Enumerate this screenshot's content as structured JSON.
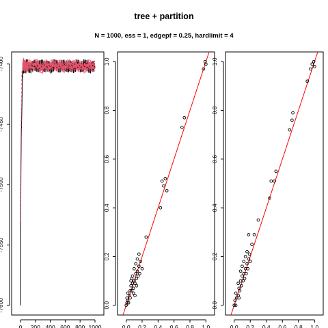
{
  "title": "tree + partition",
  "subtitle": "N = 1000, ess = 1, edgepf = 0.25, hardlimit = 4",
  "colors": {
    "trace_1": "#000000",
    "trace_2": "#DF536B",
    "points": "#000000",
    "reference_line": "#FF0000"
  },
  "chart_data": [
    {
      "type": "line",
      "title": "",
      "xlabel": "",
      "ylabel": "",
      "xlim": [
        0,
        1000
      ],
      "ylim": [
        -7600,
        -7390
      ],
      "xticks": [
        0,
        200,
        400,
        600,
        800,
        1000
      ],
      "yticks": [
        -7600,
        -7550,
        -7500,
        -7450,
        -7400
      ],
      "series": [
        {
          "color": "#000000",
          "x": [
            0,
            3,
            6,
            10,
            14,
            18,
            22,
            26,
            30,
            35,
            40,
            50,
            60,
            80,
            100,
            150,
            200,
            250,
            300,
            350,
            400,
            450,
            500,
            550,
            600,
            650,
            700,
            750,
            800,
            850,
            900,
            950,
            1000
          ],
          "y": [
            -7600,
            -7540,
            -7490,
            -7460,
            -7450,
            -7440,
            -7425,
            -7415,
            -7408,
            -7404,
            -7403,
            -7402,
            -7403,
            -7401,
            -7402,
            -7403,
            -7401,
            -7402,
            -7401,
            -7402,
            -7403,
            -7401,
            -7402,
            -7402,
            -7401,
            -7402,
            -7403,
            -7401,
            -7402,
            -7401,
            -7402,
            -7403,
            -7402
          ]
        },
        {
          "color": "#DF536B",
          "x": [
            0,
            3,
            6,
            10,
            14,
            18,
            22,
            26,
            30,
            35,
            40,
            50,
            60,
            80,
            100,
            150,
            200,
            250,
            300,
            350,
            400,
            450,
            500,
            550,
            600,
            650,
            700,
            750,
            800,
            850,
            900,
            950,
            1000
          ],
          "y": [
            -7530,
            -7480,
            -7460,
            -7445,
            -7430,
            -7410,
            -7405,
            -7404,
            -7402,
            -7401,
            -7400,
            -7402,
            -7401,
            -7403,
            -7401,
            -7402,
            -7400,
            -7402,
            -7403,
            -7401,
            -7402,
            -7400,
            -7402,
            -7401,
            -7403,
            -7400,
            -7402,
            -7401,
            -7402,
            -7403,
            -7401,
            -7402,
            -7401
          ]
        }
      ]
    },
    {
      "type": "scatter",
      "title": "",
      "xlabel": "",
      "ylabel": "",
      "xlim": [
        0,
        1
      ],
      "ylim": [
        0,
        1
      ],
      "xticks": [
        0.0,
        0.2,
        0.4,
        0.6,
        0.8,
        1.0
      ],
      "yticks": [
        0.0,
        0.2,
        0.4,
        0.6,
        0.8,
        1.0
      ],
      "reference_line": {
        "slope": 1,
        "intercept": 0
      },
      "points": [
        [
          0.0,
          0.0
        ],
        [
          0.01,
          0.01
        ],
        [
          0.02,
          0.02
        ],
        [
          0.01,
          0.03
        ],
        [
          0.03,
          0.01
        ],
        [
          0.02,
          0.05
        ],
        [
          0.04,
          0.04
        ],
        [
          0.05,
          0.06
        ],
        [
          0.05,
          0.03
        ],
        [
          0.06,
          0.08
        ],
        [
          0.07,
          0.06
        ],
        [
          0.08,
          0.09
        ],
        [
          0.06,
          0.1
        ],
        [
          0.09,
          0.07
        ],
        [
          0.1,
          0.1
        ],
        [
          0.08,
          0.12
        ],
        [
          0.11,
          0.09
        ],
        [
          0.12,
          0.13
        ],
        [
          0.1,
          0.15
        ],
        [
          0.13,
          0.11
        ],
        [
          0.14,
          0.14
        ],
        [
          0.12,
          0.17
        ],
        [
          0.15,
          0.12
        ],
        [
          0.16,
          0.16
        ],
        [
          0.14,
          0.19
        ],
        [
          0.17,
          0.13
        ],
        [
          0.18,
          0.18
        ],
        [
          0.16,
          0.21
        ],
        [
          0.2,
          0.15
        ],
        [
          0.09,
          0.05
        ],
        [
          0.11,
          0.04
        ],
        [
          0.07,
          0.11
        ],
        [
          0.13,
          0.08
        ],
        [
          0.25,
          0.28
        ],
        [
          0.43,
          0.4
        ],
        [
          0.45,
          0.51
        ],
        [
          0.49,
          0.52
        ],
        [
          0.47,
          0.49
        ],
        [
          0.51,
          0.47
        ],
        [
          0.7,
          0.73
        ],
        [
          0.73,
          0.77
        ],
        [
          0.97,
          0.97
        ],
        [
          0.99,
          1.0
        ],
        [
          1.0,
          0.99
        ]
      ]
    },
    {
      "type": "scatter",
      "title": "",
      "xlabel": "",
      "ylabel": "",
      "xlim": [
        0,
        1
      ],
      "ylim": [
        0,
        1
      ],
      "xticks": [
        0.0,
        0.2,
        0.4,
        0.6,
        0.8,
        1.0
      ],
      "yticks": [
        0.0,
        0.2,
        0.4,
        0.6,
        0.8,
        1.0
      ],
      "reference_line": {
        "slope": 1,
        "intercept": 0
      },
      "points": [
        [
          0.0,
          0.0
        ],
        [
          0.01,
          0.02
        ],
        [
          0.02,
          0.0
        ],
        [
          0.03,
          0.03
        ],
        [
          0.02,
          0.05
        ],
        [
          0.05,
          0.04
        ],
        [
          0.06,
          0.07
        ],
        [
          0.05,
          0.09
        ],
        [
          0.07,
          0.06
        ],
        [
          0.08,
          0.1
        ],
        [
          0.09,
          0.08
        ],
        [
          0.1,
          0.12
        ],
        [
          0.08,
          0.14
        ],
        [
          0.11,
          0.1
        ],
        [
          0.12,
          0.13
        ],
        [
          0.1,
          0.16
        ],
        [
          0.13,
          0.11
        ],
        [
          0.14,
          0.15
        ],
        [
          0.12,
          0.18
        ],
        [
          0.15,
          0.13
        ],
        [
          0.16,
          0.17
        ],
        [
          0.14,
          0.2
        ],
        [
          0.17,
          0.15
        ],
        [
          0.18,
          0.19
        ],
        [
          0.16,
          0.22
        ],
        [
          0.19,
          0.21
        ],
        [
          0.2,
          0.18
        ],
        [
          0.22,
          0.25
        ],
        [
          0.18,
          0.29
        ],
        [
          0.25,
          0.29
        ],
        [
          0.3,
          0.35
        ],
        [
          0.44,
          0.44
        ],
        [
          0.46,
          0.51
        ],
        [
          0.5,
          0.51
        ],
        [
          0.52,
          0.55
        ],
        [
          0.69,
          0.72
        ],
        [
          0.72,
          0.76
        ],
        [
          0.73,
          0.79
        ],
        [
          0.91,
          0.92
        ],
        [
          0.95,
          0.97
        ],
        [
          0.97,
          0.99
        ],
        [
          0.99,
          1.0
        ],
        [
          1.0,
          0.98
        ],
        [
          0.06,
          0.03
        ]
      ]
    }
  ]
}
